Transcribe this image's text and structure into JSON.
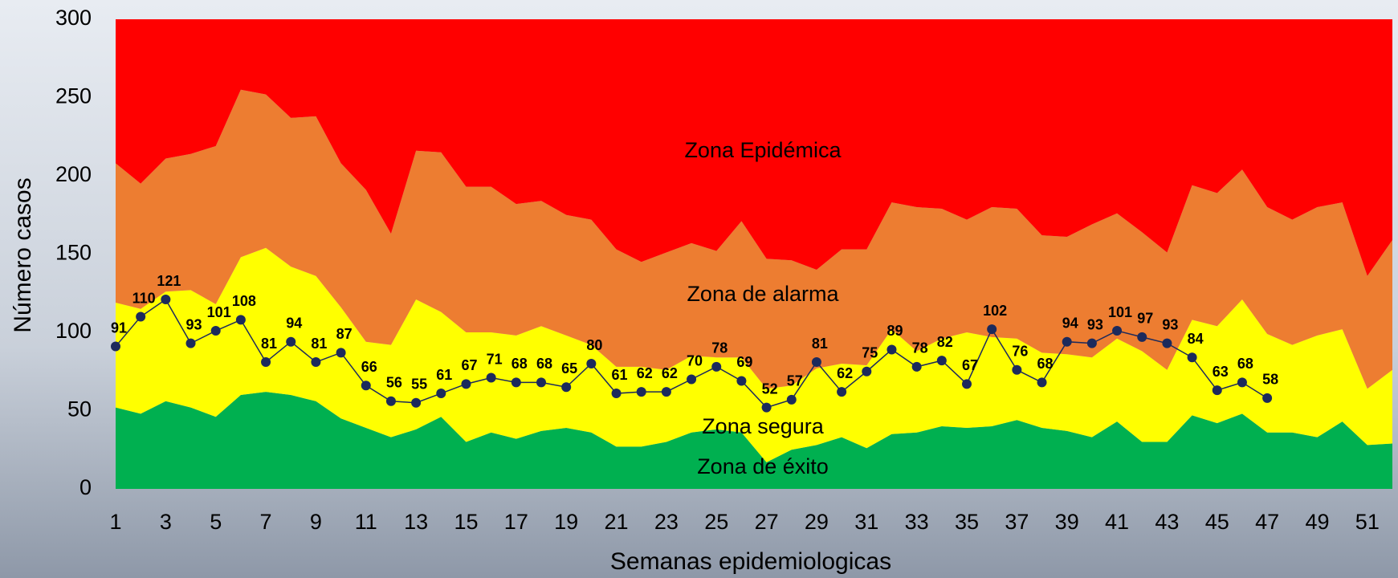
{
  "chart_data": {
    "type": "stacked_area",
    "x_label": "Semanas  epidemiologicas",
    "y_label": "Número  casos",
    "x": [
      1,
      2,
      3,
      4,
      5,
      6,
      7,
      8,
      9,
      10,
      11,
      12,
      13,
      14,
      15,
      16,
      17,
      18,
      19,
      20,
      21,
      22,
      23,
      24,
      25,
      26,
      27,
      28,
      29,
      30,
      31,
      32,
      33,
      34,
      35,
      36,
      37,
      38,
      39,
      40,
      41,
      42,
      43,
      44,
      45,
      46,
      47,
      48,
      49,
      50,
      51,
      52
    ],
    "xlim": [
      1,
      52
    ],
    "xticks": [
      1,
      3,
      5,
      7,
      9,
      11,
      13,
      15,
      17,
      19,
      21,
      23,
      25,
      27,
      29,
      31,
      33,
      35,
      37,
      39,
      41,
      43,
      45,
      47,
      49,
      51
    ],
    "ylim": [
      0,
      300
    ],
    "yticks": [
      0,
      50,
      100,
      150,
      200,
      250,
      300
    ],
    "series": [
      {
        "name": "Zona de éxito",
        "color": "#00b050",
        "values": [
          52,
          48,
          56,
          52,
          46,
          60,
          62,
          60,
          56,
          45,
          39,
          33,
          38,
          46,
          30,
          36,
          32,
          37,
          39,
          36,
          27,
          27,
          30,
          36,
          38,
          36,
          17,
          25,
          28,
          33,
          26,
          35,
          36,
          40,
          39,
          40,
          44,
          39,
          37,
          33,
          43,
          30,
          30,
          47,
          42,
          48,
          36,
          36,
          33,
          43,
          28,
          29
        ]
      },
      {
        "name": "Zona segura",
        "color": "#ffff00",
        "values": [
          67,
          67,
          70,
          75,
          72,
          88,
          92,
          82,
          80,
          71,
          55,
          59,
          83,
          67,
          70,
          64,
          66,
          67,
          59,
          56,
          51,
          51,
          46,
          49,
          46,
          48,
          47,
          41,
          49,
          47,
          53,
          67,
          52,
          56,
          61,
          57,
          52,
          48,
          49,
          51,
          53,
          58,
          46,
          61,
          62,
          73,
          63,
          56,
          65,
          59,
          36,
          47
        ]
      },
      {
        "name": "Zona de alarma",
        "color": "#ed7d31",
        "values": [
          89,
          80,
          85,
          87,
          101,
          107,
          98,
          95,
          102,
          92,
          97,
          71,
          95,
          102,
          93,
          93,
          84,
          80,
          77,
          80,
          75,
          67,
          75,
          72,
          68,
          87,
          83,
          80,
          63,
          73,
          74,
          81,
          92,
          83,
          72,
          83,
          83,
          75,
          75,
          85,
          80,
          76,
          75,
          86,
          85,
          83,
          81,
          80,
          82,
          81,
          72,
          83
        ]
      },
      {
        "name": "Zona Epidémica",
        "color": "#ff0000"
      }
    ],
    "cases": {
      "color": "#1c2a5c",
      "values": [
        91,
        110,
        121,
        93,
        101,
        108,
        81,
        94,
        81,
        87,
        66,
        56,
        55,
        61,
        67,
        71,
        68,
        68,
        65,
        80,
        61,
        62,
        62,
        70,
        78,
        69,
        52,
        57,
        81,
        62,
        75,
        89,
        78,
        82,
        67,
        102,
        76,
        68,
        94,
        93,
        101,
        97,
        93,
        84,
        63,
        68,
        58,
        null,
        null,
        null,
        null,
        null
      ]
    }
  }
}
